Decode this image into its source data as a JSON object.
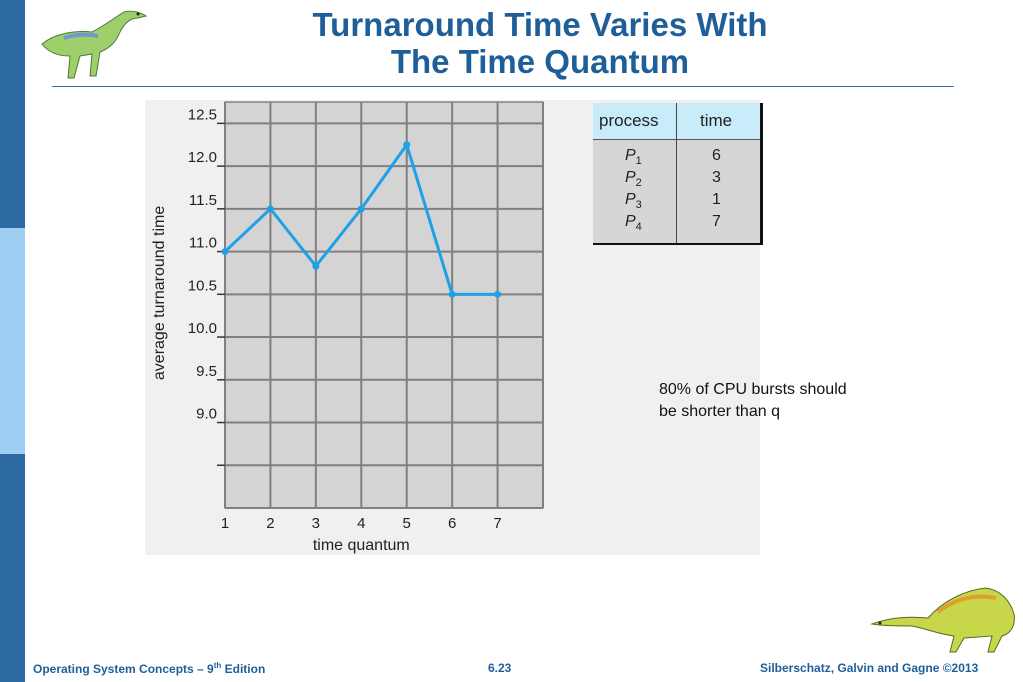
{
  "slide": {
    "title_line1": "Turnaround Time Varies With",
    "title_line2": "The Time Quantum",
    "note_line1": "80% of CPU bursts should",
    "note_line2": "be shorter than q",
    "footer_left_prefix": "Operating System Concepts – 9",
    "footer_left_sup": "th",
    "footer_left_suffix": " Edition",
    "footer_page": "6.23",
    "footer_right": "Silberschatz, Galvin and Gagne ©2013"
  },
  "colors": {
    "title": "#1f5f99",
    "sidebar_dark": "#2e6aa3",
    "sidebar_light": "#9fd0f3",
    "line": "#1ea1e8",
    "plot_bg": "#d4d4d4",
    "grid": "#808080"
  },
  "process_table": {
    "headers": [
      "process",
      "time"
    ],
    "rows": [
      {
        "name": "P",
        "sub": "1",
        "time": "6"
      },
      {
        "name": "P",
        "sub": "2",
        "time": "3"
      },
      {
        "name": "P",
        "sub": "3",
        "time": "1"
      },
      {
        "name": "P",
        "sub": "4",
        "time": "7"
      }
    ]
  },
  "chart_data": {
    "type": "line",
    "xlabel": "time quantum",
    "ylabel": "average turnaround time",
    "x": [
      1,
      2,
      3,
      4,
      5,
      6,
      7
    ],
    "series": [
      {
        "values": [
          11.0,
          11.5,
          10.83,
          11.5,
          12.25,
          10.5,
          10.5
        ]
      }
    ],
    "xticks": [
      "1",
      "2",
      "3",
      "4",
      "5",
      "6",
      "7"
    ],
    "yticks": [
      "9.0",
      "9.5",
      "10.0",
      "10.5",
      "11.0",
      "11.5",
      "12.0",
      "12.5"
    ],
    "xlim": [
      1,
      8
    ],
    "ylim": [
      8.0,
      12.75
    ],
    "grid": true
  }
}
